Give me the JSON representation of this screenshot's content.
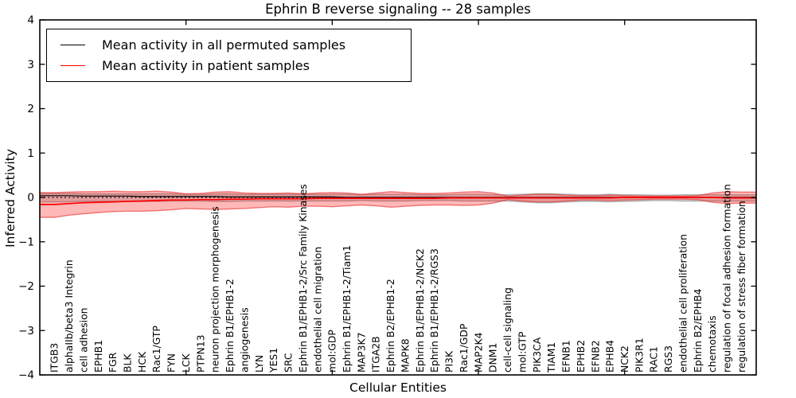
{
  "title": "Ephrin B reverse signaling -- 28 samples",
  "axis": {
    "xlabel": "Cellular Entities",
    "ylabel": "Inferred Activity"
  },
  "legend": {
    "items": [
      {
        "label": "Mean activity in all permuted samples",
        "color": "#000000"
      },
      {
        "label": "Mean activity in patient samples",
        "color": "#ff0000"
      }
    ]
  },
  "colors": {
    "patient_line": "#ff0000",
    "permuted_line": "#000000",
    "patient_band_fill": "rgba(255,0,0,0.28)",
    "patient_band_edge": "rgba(230,30,30,0.55)",
    "permuted_band_fill": "rgba(130,130,130,0.30)",
    "permuted_band_edge": "rgba(120,120,120,0.55)",
    "frame": "#000000"
  },
  "chart_data": {
    "type": "line",
    "title": "Ephrin B reverse signaling -- 28 samples",
    "xlabel": "Cellular Entities",
    "ylabel": "Inferred Activity",
    "ylim": [
      -4,
      4
    ],
    "yticks": [
      -4,
      -3,
      -2,
      -1,
      0,
      1,
      2,
      3,
      4
    ],
    "xticks": [
      10,
      20,
      30,
      40
    ],
    "grid": false,
    "legend_position": "upper left",
    "categories": [
      "ITGB3",
      "alphaIIb/beta3 Integrin",
      "cell adhesion",
      "EPHB1",
      "FGR",
      "BLK",
      "HCK",
      "Rac1/GTP",
      "FYN",
      "LCK",
      "PTPN13",
      "neuron projection morphogenesis",
      "Ephrin B1/EPHB1-2",
      "angiogenesis",
      "LYN",
      "YES1",
      "SRC",
      "Ephrin B1/EPHB1-2/Src Family Kinases",
      "endothelial cell migration",
      "mol:GDP",
      "Ephrin B1/EPHB1-2/Tiam1",
      "MAP3K7",
      "ITGA2B",
      "Ephrin B2/EPHB1-2",
      "MAPK8",
      "Ephrin B1/EPHB1-2/NCK2",
      "Ephrin B1/EPHB1-2/RGS3",
      "PI3K",
      "Rac1/GDP",
      "MAP2K4",
      "DNM1",
      "cell-cell signaling",
      "mol:GTP",
      "PIK3CA",
      "TIAM1",
      "EFNB1",
      "EPHB2",
      "EFNB2",
      "EPHB4",
      "NCK2",
      "PIK3R1",
      "RAC1",
      "RGS3",
      "endothelial cell proliferation",
      "Ephrin B2/EPHB4",
      "chemotaxis",
      "regulation of focal adhesion formation",
      "regulation of stress fiber formation"
    ],
    "series": [
      {
        "name": "Mean activity in all permuted samples",
        "color": "#000000",
        "values": [
          0.04,
          0.04,
          0.03,
          0.03,
          0.03,
          0.03,
          0.02,
          0.02,
          0.02,
          0.02,
          0.02,
          0.02,
          0.01,
          0.01,
          0.01,
          0.01,
          0.01,
          0.01,
          0.01,
          0.01,
          0,
          0,
          0,
          0,
          0,
          0,
          0,
          0,
          0,
          0,
          0,
          0,
          0,
          0,
          0,
          0,
          0,
          0,
          0,
          0,
          0,
          0,
          0,
          0,
          0,
          0,
          0,
          0
        ]
      },
      {
        "name": "Mean activity in patient samples",
        "color": "#ff0000",
        "values": [
          -0.16,
          -0.14,
          -0.12,
          -0.11,
          -0.1,
          -0.09,
          -0.08,
          -0.07,
          -0.06,
          -0.06,
          -0.05,
          -0.05,
          -0.04,
          -0.04,
          -0.03,
          -0.03,
          -0.03,
          -0.03,
          -0.02,
          -0.02,
          -0.02,
          -0.02,
          -0.02,
          -0.02,
          -0.02,
          -0.02,
          -0.02,
          -0.01,
          -0.01,
          -0.01,
          -0.01,
          -0.01,
          -0.01,
          -0.01,
          -0.01,
          -0.01,
          -0.01,
          -0.01,
          -0.01,
          0,
          0,
          0,
          0,
          0,
          0,
          0,
          -0.01,
          -0.01
        ]
      }
    ],
    "bands": [
      {
        "name": "permuted samples range",
        "upper": [
          0.09,
          0.09,
          0.08,
          0.08,
          0.08,
          0.08,
          0.08,
          0.08,
          0.08,
          0.07,
          0.07,
          0.08,
          0.08,
          0.07,
          0.07,
          0.07,
          0.07,
          0.07,
          0.07,
          0.07,
          0.07,
          0.06,
          0.07,
          0.07,
          0.07,
          0.06,
          0.06,
          0.06,
          0.07,
          0.07,
          0.06,
          0.06,
          0.07,
          0.08,
          0.08,
          0.07,
          0.06,
          0.06,
          0.07,
          0.06,
          0.06,
          0.05,
          0.05,
          0.06,
          0.06,
          0.06,
          0.06,
          0.06
        ],
        "lower": [
          -0.1,
          -0.1,
          -0.09,
          -0.09,
          -0.09,
          -0.09,
          -0.09,
          -0.09,
          -0.08,
          -0.08,
          -0.08,
          -0.09,
          -0.09,
          -0.08,
          -0.08,
          -0.08,
          -0.08,
          -0.08,
          -0.08,
          -0.08,
          -0.08,
          -0.07,
          -0.08,
          -0.08,
          -0.08,
          -0.07,
          -0.07,
          -0.07,
          -0.08,
          -0.08,
          -0.08,
          -0.08,
          -0.1,
          -0.12,
          -0.12,
          -0.1,
          -0.09,
          -0.09,
          -0.1,
          -0.09,
          -0.08,
          -0.07,
          -0.07,
          -0.08,
          -0.08,
          -0.08,
          -0.08,
          -0.08
        ]
      },
      {
        "name": "patient samples range",
        "upper": [
          0.11,
          0.12,
          0.13,
          0.13,
          0.14,
          0.13,
          0.13,
          0.14,
          0.12,
          0.08,
          0.09,
          0.12,
          0.13,
          0.1,
          0.09,
          0.09,
          0.1,
          0.08,
          0.1,
          0.11,
          0.1,
          0.07,
          0.1,
          0.13,
          0.11,
          0.09,
          0.09,
          0.1,
          0.12,
          0.13,
          0.1,
          0.03,
          0.05,
          0.07,
          0.07,
          0.05,
          0.04,
          0.04,
          0.05,
          0.04,
          0.03,
          0.03,
          0.03,
          0.03,
          0.04,
          0.1,
          0.13,
          0.12
        ],
        "lower": [
          -0.45,
          -0.4,
          -0.37,
          -0.34,
          -0.32,
          -0.31,
          -0.31,
          -0.3,
          -0.28,
          -0.25,
          -0.26,
          -0.27,
          -0.26,
          -0.25,
          -0.23,
          -0.21,
          -0.22,
          -0.2,
          -0.2,
          -0.21,
          -0.19,
          -0.17,
          -0.19,
          -0.22,
          -0.2,
          -0.18,
          -0.17,
          -0.17,
          -0.18,
          -0.17,
          -0.13,
          -0.05,
          -0.08,
          -0.1,
          -0.1,
          -0.08,
          -0.06,
          -0.06,
          -0.07,
          -0.06,
          -0.05,
          -0.04,
          -0.04,
          -0.04,
          -0.05,
          -0.11,
          -0.14,
          -0.13
        ]
      }
    ],
    "zero_line": {
      "y": 0,
      "style": "dotted",
      "color": "#000000"
    }
  }
}
